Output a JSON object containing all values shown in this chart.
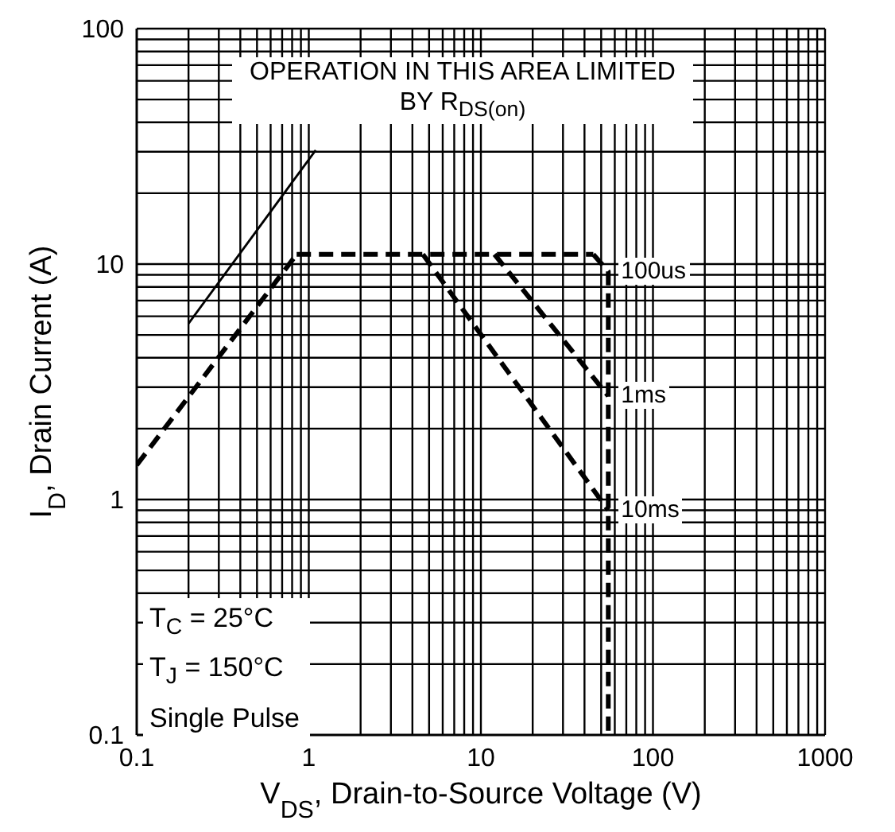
{
  "chart_data": {
    "type": "line",
    "xlabel": "V$_{DS}$, Drain-to-Source Voltage (V)",
    "ylabel": "I$_{D}$, Drain Current (A)",
    "log": "xy",
    "grid": true,
    "legend": false,
    "marker": "none",
    "line_style": "dashed",
    "xlim": [
      0.1,
      1000
    ],
    "ylim": [
      0.1,
      100
    ],
    "xticks": [
      0.1,
      {
        "value": 0.2,
        "label": null
      },
      {
        "value": 0.3,
        "label": null
      },
      {
        "value": 0.4,
        "label": null
      },
      {
        "value": 0.5,
        "label": null
      },
      {
        "value": 0.6,
        "label": null
      },
      {
        "value": 0.7,
        "label": null
      },
      {
        "value": 0.8,
        "label": null
      },
      {
        "value": 0.9,
        "label": null
      },
      1,
      {
        "value": 2,
        "label": null
      },
      {
        "value": 3,
        "label": null
      },
      {
        "value": 4,
        "label": null
      },
      {
        "value": 5,
        "label": null
      },
      {
        "value": 6,
        "label": null
      },
      {
        "value": 7,
        "label": null
      },
      {
        "value": 8,
        "label": null
      },
      {
        "value": 9,
        "label": null
      },
      10,
      {
        "value": 20,
        "label": null
      },
      {
        "value": 30,
        "label": null
      },
      {
        "value": 40,
        "label": null
      },
      {
        "value": 50,
        "label": null
      },
      {
        "value": 60,
        "label": null
      },
      {
        "value": 70,
        "label": null
      },
      {
        "value": 80,
        "label": null
      },
      {
        "value": 90,
        "label": null
      },
      100,
      {
        "value": 200,
        "label": null
      },
      {
        "value": 300,
        "label": null
      },
      {
        "value": 400,
        "label": null
      },
      {
        "value": 500,
        "label": null
      },
      {
        "value": 600,
        "label": null
      },
      {
        "value": 700,
        "label": null
      },
      {
        "value": 800,
        "label": null
      },
      {
        "value": 900,
        "label": null
      },
      1000
    ],
    "yticks": [
      0.1,
      {
        "value": 0.2,
        "label": null
      },
      {
        "value": 0.3,
        "label": null
      },
      {
        "value": 0.4,
        "label": null
      },
      {
        "value": 0.5,
        "label": null
      },
      {
        "value": 0.6,
        "label": null
      },
      {
        "value": 0.7,
        "label": null
      },
      {
        "value": 0.8,
        "label": null
      },
      {
        "value": 0.9,
        "label": null
      },
      1,
      {
        "value": 2,
        "label": null
      },
      {
        "value": 3,
        "label": null
      },
      {
        "value": 4,
        "label": null
      },
      {
        "value": 5,
        "label": null
      },
      {
        "value": 6,
        "label": null
      },
      {
        "value": 7,
        "label": null
      },
      {
        "value": 8,
        "label": null
      },
      {
        "value": 9,
        "label": null
      },
      10,
      {
        "value": 20,
        "label": null
      },
      {
        "value": 30,
        "label": null
      },
      {
        "value": 40,
        "label": null
      },
      {
        "value": 50,
        "label": null
      },
      {
        "value": 60,
        "label": null
      },
      {
        "value": 70,
        "label": null
      },
      {
        "value": 80,
        "label": null
      },
      {
        "value": 90,
        "label": null
      },
      100
    ],
    "series": [
      {
        "color": "#000000",
        "x": [
          0.1,
          0.85
        ],
        "values": [
          1.4,
          11
        ]
      },
      {
        "color": "#000000",
        "x": [
          0.85,
          45
        ],
        "values": [
          11,
          11
        ]
      },
      {
        "name": "100us",
        "color": "#000000",
        "x": [
          45,
          55,
          55
        ],
        "values": [
          11,
          9.3,
          0.1
        ]
      },
      {
        "name": "1ms",
        "color": "#000000",
        "x": [
          12,
          55
        ],
        "values": [
          11,
          2.75
        ]
      },
      {
        "name": "10ms",
        "color": "#000000",
        "x": [
          4.6,
          55
        ],
        "values": [
          11,
          0.9
        ]
      }
    ],
    "annotations": [
      "OPERATION IN THIS AREA LIMITED BY R$_{DS(on)}$",
      "T$_{C}$ = 25°C",
      "T$_{J}$ = 150°C",
      "Single Pulse"
    ]
  }
}
